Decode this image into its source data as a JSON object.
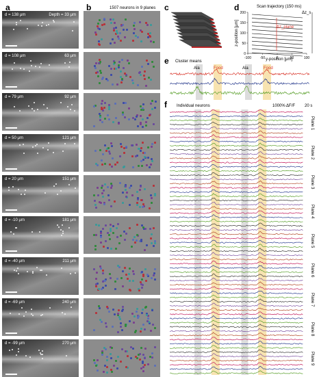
{
  "panels": {
    "a": {
      "label": "a"
    },
    "b": {
      "label": "b",
      "title": "1507 neurons in 9 planes"
    },
    "c": {
      "label": "c"
    },
    "d": {
      "label": "d",
      "title": "Scan trajectory (150 ms)",
      "delta_z_s": "Δz_s",
      "delta_z_plane": "Δz_plane",
      "ylabel": "z-position [μm]",
      "xlabel": "y-position [μm]",
      "x_ticks": [
        "-100",
        "-50",
        "0",
        "50",
        "100"
      ],
      "y_ticks": [
        "200",
        "150",
        "100",
        "50",
        "0"
      ]
    },
    "e": {
      "label": "e",
      "title": "Cluster means",
      "annotations": [
        "Ala",
        "Food",
        "Ala",
        "Food"
      ]
    },
    "f": {
      "label": "f",
      "title": "Individual neurons",
      "scale_y": "1000% ΔF/F",
      "scale_x": "20 s",
      "planes": [
        "Plane 1",
        "Plane 2",
        "Plane 3",
        "Plane 4",
        "Plane 5",
        "Plane 6",
        "Plane 7",
        "Plane 8",
        "Plane 9"
      ]
    }
  },
  "tiles": [
    {
      "depth": "d = 138 μm",
      "depth_label": "Depth = 33 μm"
    },
    {
      "depth": "d = 108 μm",
      "depth_label": "63 μm"
    },
    {
      "depth": "d = 79 μm",
      "depth_label": "92 μm"
    },
    {
      "depth": "d = 50 μm",
      "depth_label": "121 μm"
    },
    {
      "depth": "d = 20 μm",
      "depth_label": "151 μm"
    },
    {
      "depth": "d = -10 μm",
      "depth_label": "181 μm"
    },
    {
      "depth": "d = -40 μm",
      "depth_label": "211 μm"
    },
    {
      "depth": "d = -69 μm",
      "depth_label": "240 μm"
    },
    {
      "depth": "d = -99 μm",
      "depth_label": "270 μm"
    }
  ],
  "colors": {
    "trace_red": "#d9362b",
    "trace_blue": "#2a3d8f",
    "trace_green": "#5aa02c",
    "food_band": "#f7e3b0",
    "ala_band": "#dcdcdc"
  }
}
